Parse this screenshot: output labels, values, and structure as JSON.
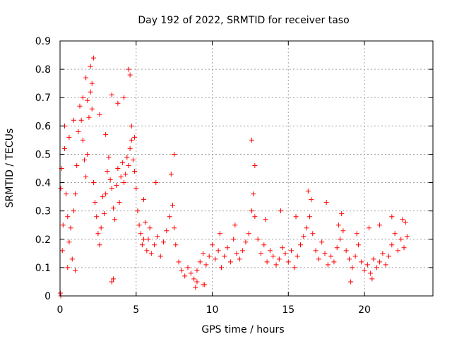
{
  "chart_data": {
    "type": "scatter",
    "title": "Day 192 of 2022, SRMTID for receiver taso",
    "xlabel": "GPS time / hours",
    "ylabel": "SRMTID / TECUs",
    "xlim": [
      0,
      24.5
    ],
    "ylim": [
      0,
      0.9
    ],
    "xticks": [
      0,
      5,
      10,
      15,
      20
    ],
    "xtick_labels": [
      "0",
      "5",
      "10",
      "15",
      "20"
    ],
    "yticks": [
      0,
      0.1,
      0.2,
      0.3,
      0.4,
      0.5,
      0.6,
      0.7,
      0.8,
      0.9
    ],
    "ytick_labels": [
      "0",
      "0.1",
      "0.2",
      "0.3",
      "0.4",
      "0.5",
      "0.6",
      "0.7",
      "0.8",
      "0.9"
    ],
    "grid": true,
    "marker": "+",
    "series": [
      {
        "name": "SRMTID",
        "color": "#ff0000",
        "x": [
          0.05,
          0.1,
          0.2,
          0.3,
          0.4,
          0.5,
          0.6,
          0.7,
          0.8,
          0.9,
          1.0,
          1.1,
          1.2,
          1.3,
          1.4,
          1.5,
          1.6,
          1.7,
          1.8,
          1.9,
          2.0,
          2.1,
          2.2,
          2.3,
          2.4,
          2.5,
          2.6,
          2.7,
          2.8,
          2.9,
          3.0,
          3.1,
          3.2,
          3.3,
          3.4,
          3.5,
          3.6,
          3.7,
          3.8,
          3.9,
          4.0,
          4.1,
          4.2,
          4.3,
          4.4,
          4.5,
          4.6,
          4.7,
          4.8,
          4.9,
          5.0,
          5.1,
          5.2,
          5.3,
          5.4,
          5.5,
          5.6,
          5.7,
          5.8,
          5.9,
          6.0,
          6.2,
          6.4,
          6.6,
          6.8,
          7.0,
          7.2,
          7.4,
          7.5,
          7.6,
          7.8,
          8.0,
          8.2,
          8.4,
          8.6,
          8.8,
          9.0,
          9.2,
          9.4,
          9.6,
          9.8,
          10.0,
          10.2,
          10.4,
          10.6,
          10.8,
          11.0,
          11.2,
          11.4,
          11.6,
          11.8,
          12.0,
          12.2,
          12.4,
          12.6,
          12.7,
          12.8,
          13.0,
          13.2,
          13.4,
          13.6,
          13.8,
          14.0,
          14.2,
          14.4,
          14.6,
          14.8,
          15.0,
          15.2,
          15.4,
          15.6,
          15.8,
          16.0,
          16.2,
          16.4,
          16.6,
          16.8,
          17.0,
          17.2,
          17.4,
          17.6,
          17.8,
          18.0,
          18.2,
          18.4,
          18.6,
          18.8,
          19.0,
          19.2,
          19.4,
          19.6,
          19.8,
          20.0,
          20.2,
          20.4,
          20.6,
          20.8,
          21.0,
          21.2,
          21.4,
          21.6,
          21.8,
          22.0,
          22.2,
          22.4,
          22.6,
          22.8,
          0.3,
          0.6,
          0.9,
          1.5,
          1.8,
          2.0,
          2.2,
          2.6,
          3.0,
          3.4,
          3.8,
          4.2,
          4.5,
          4.7,
          4.9,
          1.7,
          2.1,
          4.6,
          0.15,
          0.5,
          1.0,
          3.5,
          5.5,
          6.3,
          7.3,
          7.5,
          9.0,
          9.4,
          10.5,
          11.5,
          12.6,
          12.8,
          13.5,
          14.5,
          15.5,
          16.3,
          16.5,
          17.5,
          18.3,
          18.5,
          19.5,
          20.3,
          21.0,
          21.8,
          22.5,
          22.7,
          0.02,
          0.05,
          3.4,
          8.9,
          9.5,
          19.1,
          20.5
        ],
        "y": [
          0.38,
          0.45,
          0.25,
          0.52,
          0.36,
          0.28,
          0.19,
          0.24,
          0.13,
          0.3,
          0.36,
          0.46,
          0.58,
          0.67,
          0.62,
          0.55,
          0.48,
          0.42,
          0.5,
          0.63,
          0.72,
          0.66,
          0.4,
          0.33,
          0.28,
          0.22,
          0.18,
          0.24,
          0.35,
          0.29,
          0.36,
          0.44,
          0.49,
          0.41,
          0.38,
          0.31,
          0.27,
          0.39,
          0.45,
          0.33,
          0.42,
          0.47,
          0.4,
          0.43,
          0.49,
          0.46,
          0.52,
          0.55,
          0.48,
          0.44,
          0.38,
          0.3,
          0.25,
          0.22,
          0.18,
          0.2,
          0.26,
          0.16,
          0.2,
          0.24,
          0.15,
          0.18,
          0.21,
          0.14,
          0.19,
          0.23,
          0.28,
          0.32,
          0.24,
          0.18,
          0.12,
          0.09,
          0.07,
          0.1,
          0.08,
          0.06,
          0.09,
          0.12,
          0.15,
          0.11,
          0.14,
          0.18,
          0.13,
          0.16,
          0.1,
          0.14,
          0.17,
          0.12,
          0.2,
          0.15,
          0.13,
          0.16,
          0.19,
          0.22,
          0.3,
          0.36,
          0.28,
          0.2,
          0.15,
          0.18,
          0.12,
          0.16,
          0.14,
          0.11,
          0.13,
          0.17,
          0.15,
          0.12,
          0.16,
          0.1,
          0.14,
          0.18,
          0.21,
          0.24,
          0.28,
          0.22,
          0.16,
          0.13,
          0.19,
          0.15,
          0.11,
          0.14,
          0.12,
          0.17,
          0.2,
          0.23,
          0.16,
          0.13,
          0.1,
          0.14,
          0.18,
          0.12,
          0.09,
          0.11,
          0.08,
          0.13,
          0.1,
          0.12,
          0.15,
          0.11,
          0.14,
          0.18,
          0.22,
          0.16,
          0.2,
          0.17,
          0.21,
          0.6,
          0.56,
          0.62,
          0.7,
          0.69,
          0.81,
          0.84,
          0.64,
          0.57,
          0.71,
          0.68,
          0.7,
          0.8,
          0.6,
          0.56,
          0.77,
          0.75,
          0.78,
          0.16,
          0.1,
          0.09,
          0.06,
          0.34,
          0.4,
          0.43,
          0.5,
          0.05,
          0.04,
          0.22,
          0.25,
          0.55,
          0.46,
          0.27,
          0.3,
          0.28,
          0.37,
          0.34,
          0.33,
          0.25,
          0.29,
          0.22,
          0.24,
          0.25,
          0.28,
          0.27,
          0.26,
          0.01,
          0.0,
          0.05,
          0.03,
          0.04,
          0.05,
          0.06
        ]
      }
    ]
  }
}
